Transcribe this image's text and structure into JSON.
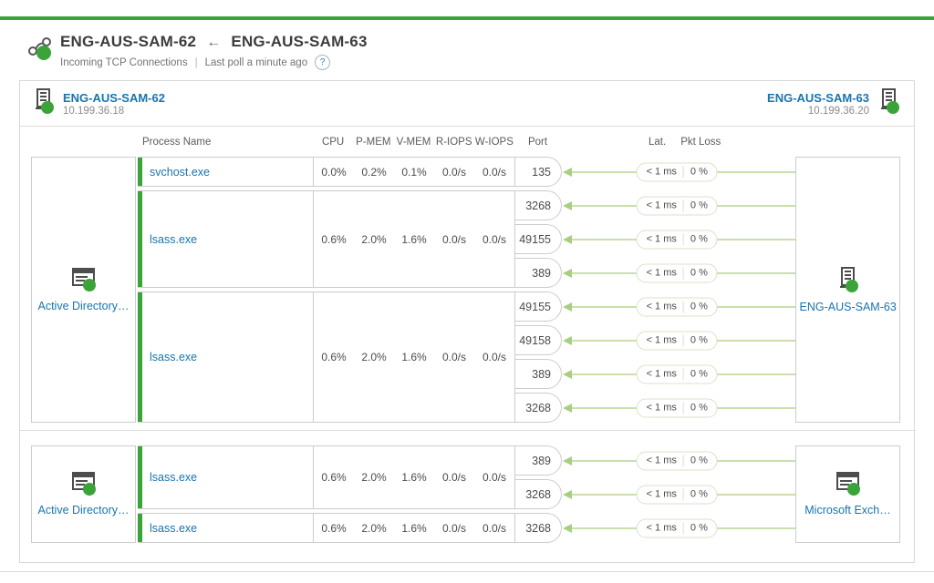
{
  "header": {
    "title_left": "ENG-AUS-SAM-62",
    "title_arrow": "←",
    "title_right": "ENG-AUS-SAM-63",
    "subtitle_left": "Incoming TCP Connections",
    "subtitle_sep": "|",
    "subtitle_right": "Last poll a minute ago",
    "help_glyph": "?"
  },
  "panel_head": {
    "left_node": {
      "name": "ENG-AUS-SAM-62",
      "ip": "10.199.36.18"
    },
    "right_node": {
      "name": "ENG-AUS-SAM-63",
      "ip": "10.199.36.20"
    }
  },
  "columns": [
    "Process Name",
    "CPU",
    "P-MEM",
    "V-MEM",
    "R-IOPS",
    "W-IOPS",
    "Port",
    "Lat.",
    "Pkt Loss"
  ],
  "groups": [
    {
      "source": {
        "label": "Active Directory…",
        "icon": "application"
      },
      "target": {
        "label": "ENG-AUS-SAM-63",
        "icon": "server"
      },
      "rows": [
        {
          "process": "svchost.exe",
          "cpu": "0.0%",
          "pmem": "0.2%",
          "vmem": "0.1%",
          "riops": "0.0/s",
          "wiops": "0.0/s",
          "ports": [
            {
              "port": "135",
              "latency": "< 1 ms",
              "pkt_loss": "0 %"
            }
          ]
        },
        {
          "process": "lsass.exe",
          "cpu": "0.6%",
          "pmem": "2.0%",
          "vmem": "1.6%",
          "riops": "0.0/s",
          "wiops": "0.0/s",
          "ports": [
            {
              "port": "3268",
              "latency": "< 1 ms",
              "pkt_loss": "0 %"
            },
            {
              "port": "49155",
              "latency": "< 1 ms",
              "pkt_loss": "0 %"
            },
            {
              "port": "389",
              "latency": "< 1 ms",
              "pkt_loss": "0 %"
            }
          ]
        },
        {
          "process": "lsass.exe",
          "cpu": "0.6%",
          "pmem": "2.0%",
          "vmem": "1.6%",
          "riops": "0.0/s",
          "wiops": "0.0/s",
          "ports": [
            {
              "port": "49155",
              "latency": "< 1 ms",
              "pkt_loss": "0 %"
            },
            {
              "port": "49158",
              "latency": "< 1 ms",
              "pkt_loss": "0 %"
            },
            {
              "port": "389",
              "latency": "< 1 ms",
              "pkt_loss": "0 %"
            },
            {
              "port": "3268",
              "latency": "< 1 ms",
              "pkt_loss": "0 %"
            }
          ]
        }
      ]
    },
    {
      "source": {
        "label": "Active Directory…",
        "icon": "application"
      },
      "target": {
        "label": "Microsoft Exch…",
        "icon": "application"
      },
      "rows": [
        {
          "process": "lsass.exe",
          "cpu": "0.6%",
          "pmem": "2.0%",
          "vmem": "1.6%",
          "riops": "0.0/s",
          "wiops": "0.0/s",
          "ports": [
            {
              "port": "389",
              "latency": "< 1 ms",
              "pkt_loss": "0 %"
            },
            {
              "port": "3268",
              "latency": "< 1 ms",
              "pkt_loss": "0 %"
            }
          ]
        },
        {
          "process": "lsass.exe",
          "cpu": "0.6%",
          "pmem": "2.0%",
          "vmem": "1.6%",
          "riops": "0.0/s",
          "wiops": "0.0/s",
          "ports": [
            {
              "port": "3268",
              "latency": "< 1 ms",
              "pkt_loss": "0 %"
            }
          ]
        }
      ]
    }
  ],
  "colors": {
    "accent_green": "#3aa439",
    "line_green": "#cadfab",
    "arrow_green": "#a6d07f",
    "link_blue": "#1974ad"
  }
}
